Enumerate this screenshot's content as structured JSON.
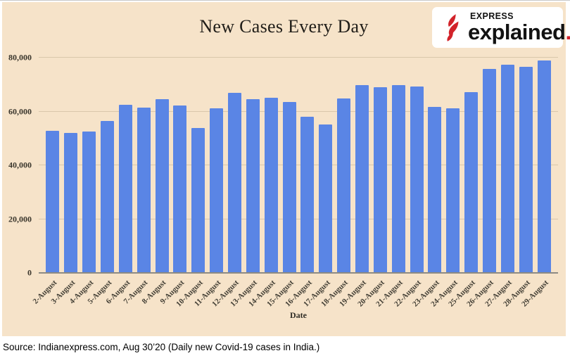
{
  "chart_data": {
    "type": "bar",
    "title": "New Cases Every Day",
    "xlabel": "Date",
    "ylabel": "",
    "ylim": [
      0,
      80000
    ],
    "grid": true,
    "yticks": [
      {
        "value": 0,
        "label": "0"
      },
      {
        "value": 20000,
        "label": "20,000"
      },
      {
        "value": 40000,
        "label": "40,000"
      },
      {
        "value": 60000,
        "label": "60,000"
      },
      {
        "value": 80000,
        "label": "80,000"
      }
    ],
    "categories": [
      "2-August",
      "3-August",
      "4-August",
      "5-August",
      "6-August",
      "7-August",
      "8-August",
      "9-August",
      "10-August",
      "11-August",
      "12-August",
      "13-August",
      "14-August",
      "15-August",
      "16-August",
      "17-August",
      "18-August",
      "19-August",
      "20-August",
      "21-August",
      "22-August",
      "23-August",
      "24-August",
      "25-August",
      "26-August",
      "27-August",
      "28-August",
      "29-August"
    ],
    "values": [
      52900,
      52000,
      52600,
      56500,
      62500,
      61500,
      64500,
      62200,
      53800,
      61100,
      66900,
      64600,
      65200,
      63600,
      58000,
      55200,
      64800,
      69700,
      68900,
      69900,
      69300,
      61600,
      61200,
      67100,
      75800,
      77400,
      76600,
      78900
    ],
    "bar_color": "#5a85e5",
    "background_color": "#f6e3c9",
    "gridline_color": "#d9c7ab"
  },
  "logo": {
    "kicker": "EXPRESS",
    "wordmark": "explained",
    "dot": ".",
    "brand_red": "#d2232a"
  },
  "footer": {
    "source_text": "Source: Indianexpress.com, Aug 30’20 (Daily new Covid-19 cases in India.)"
  }
}
